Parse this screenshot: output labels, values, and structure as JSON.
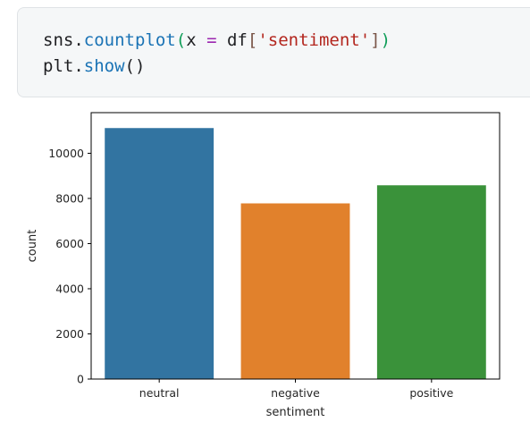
{
  "code_cell": {
    "line1": {
      "obj": "sns",
      "dot": ".",
      "fn": "countplot",
      "open": "(",
      "arg": "x ",
      "eq": "=",
      "var": " df",
      "lbr": "[",
      "str": "'sentiment'",
      "rbr": "]",
      "close": ")"
    },
    "line2": {
      "obj": "plt",
      "dot": ".",
      "fn": "show",
      "parens": "()"
    }
  },
  "chart_data": {
    "type": "bar",
    "categories": [
      "neutral",
      "negative",
      "positive"
    ],
    "values": [
      11117,
      7781,
      8582
    ],
    "colors": [
      "#3274a1",
      "#e1812c",
      "#3a923a"
    ],
    "xlabel": "sentiment",
    "ylabel": "count",
    "ylim": [
      0,
      11800
    ],
    "yticks": [
      0,
      2000,
      4000,
      6000,
      8000,
      10000
    ],
    "ytick_labels": [
      "0",
      "2000",
      "4000",
      "6000",
      "8000",
      "10000"
    ],
    "grid": false
  }
}
